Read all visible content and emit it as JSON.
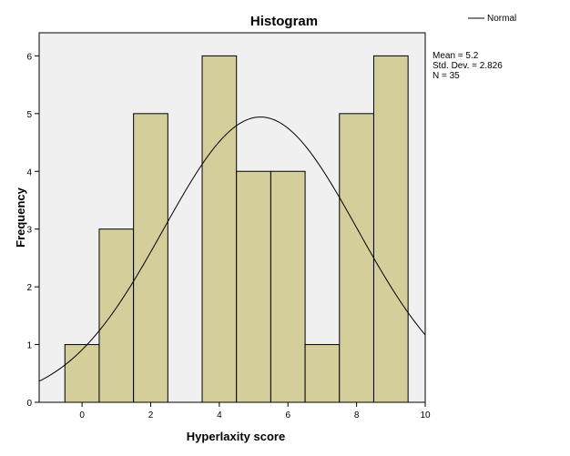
{
  "chart_data": {
    "type": "bar",
    "title": "Histogram",
    "xlabel": "Hyperlaxity score",
    "ylabel": "Frequency",
    "xlim": [
      -1.25,
      10
    ],
    "ylim": [
      0,
      6.4
    ],
    "x_ticks": [
      0,
      2,
      4,
      6,
      8,
      10
    ],
    "y_ticks": [
      0,
      1,
      2,
      3,
      4,
      5,
      6
    ],
    "bins": [
      {
        "start": -0.5,
        "end": 0.5,
        "value": 1
      },
      {
        "start": 0.5,
        "end": 1.5,
        "value": 3
      },
      {
        "start": 1.5,
        "end": 2.5,
        "value": 5
      },
      {
        "start": 2.5,
        "end": 3.5,
        "value": 0
      },
      {
        "start": 3.5,
        "end": 4.5,
        "value": 6
      },
      {
        "start": 4.5,
        "end": 5.5,
        "value": 4
      },
      {
        "start": 5.5,
        "end": 6.5,
        "value": 4
      },
      {
        "start": 6.5,
        "end": 7.5,
        "value": 1
      },
      {
        "start": 7.5,
        "end": 8.5,
        "value": 5
      },
      {
        "start": 8.5,
        "end": 9.5,
        "value": 6
      }
    ],
    "normal_curve": {
      "mean": 5.2,
      "std": 2.826,
      "n": 35,
      "bin_width": 1
    },
    "legend": {
      "label": "Normal",
      "position": "top-right"
    },
    "stats": [
      "Mean = 5.2",
      "Std. Dev. = 2.826",
      "N = 35"
    ],
    "colors": {
      "bar": "#d3ce9a",
      "plot_bg": "#f0f0f0",
      "curve": "#000000"
    },
    "grid": false
  }
}
